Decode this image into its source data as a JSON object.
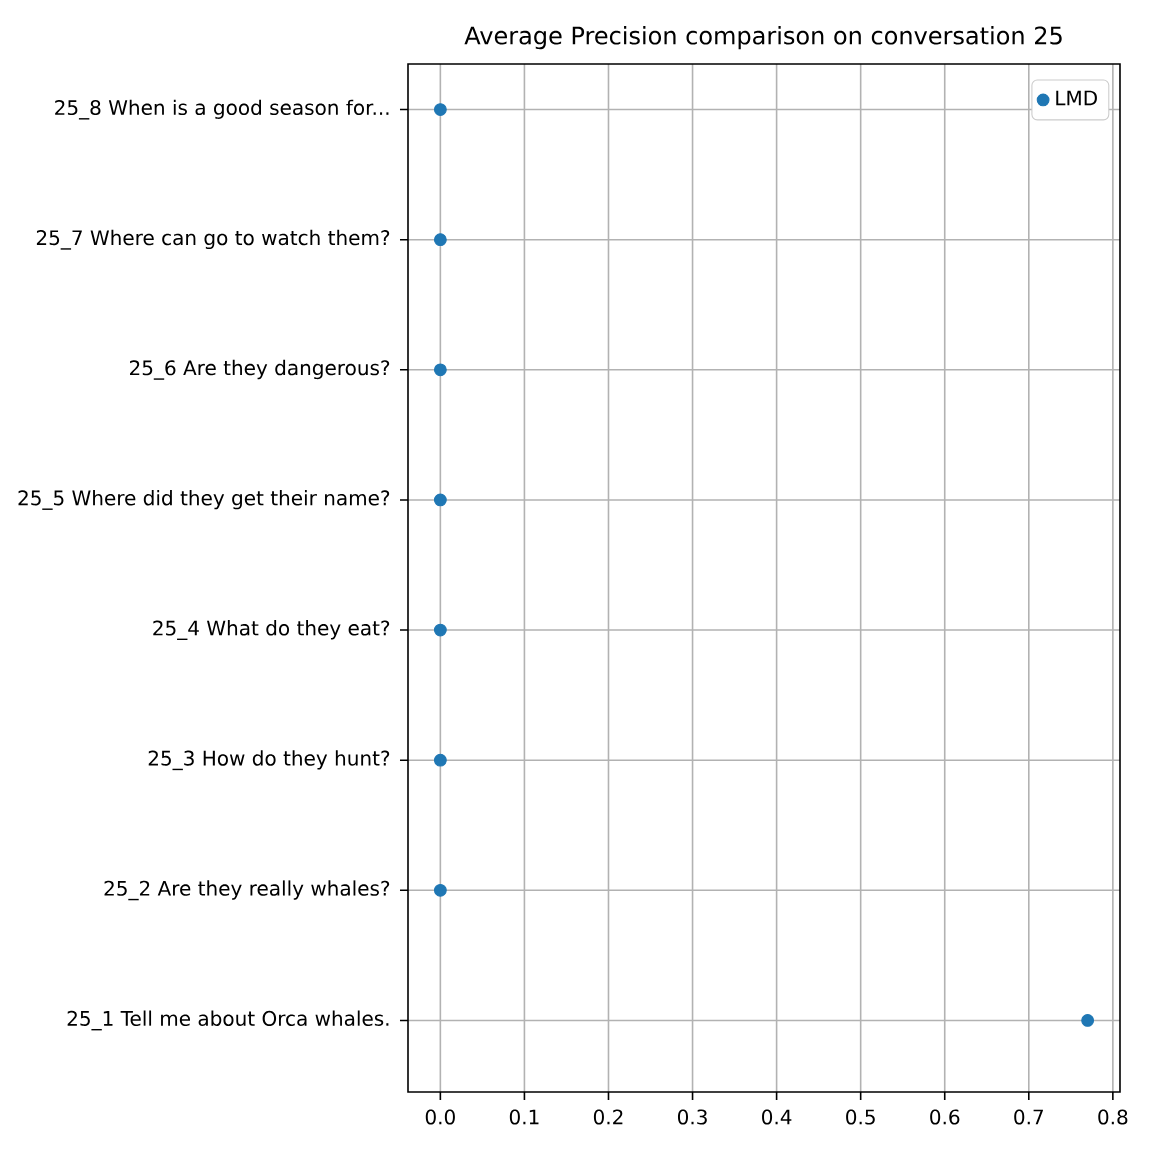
{
  "chart_data": {
    "type": "scatter",
    "orientation": "horizontal",
    "title": "Average Precision comparison on conversation 25",
    "categories": [
      "25_8 When is a good season for...",
      "25_7 Where can go to watch them?",
      "25_6 Are they dangerous?",
      "25_5 Where did they get their name?",
      "25_4 What do they eat?",
      "25_3 How do they hunt?",
      "25_2 Are they really whales?",
      "25_1 Tell me about Orca whales."
    ],
    "series": [
      {
        "name": "LMD",
        "color": "#1f77b4",
        "values": [
          0,
          0,
          0,
          0,
          0,
          0,
          0,
          0.77
        ]
      }
    ],
    "xlim": [
      -0.0385,
      0.8085
    ],
    "xticks": [
      {
        "value": 0,
        "label": "0.0"
      },
      0.1,
      0.2,
      0.3,
      0.4,
      0.5,
      0.6,
      0.7,
      0.8
    ],
    "grid": true,
    "legend": "top right"
  }
}
